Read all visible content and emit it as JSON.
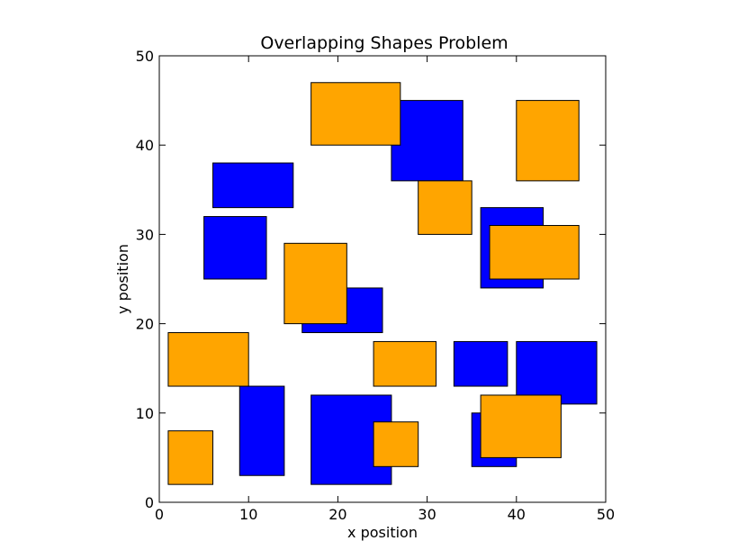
{
  "chart_data": {
    "type": "rectangles",
    "title": "Overlapping Shapes Problem",
    "xlabel": "x position",
    "ylabel": "y position",
    "xlim": [
      0,
      50
    ],
    "ylim": [
      0,
      50
    ],
    "xticks": [
      0,
      10,
      20,
      30,
      40,
      50
    ],
    "yticks": [
      0,
      10,
      20,
      30,
      40,
      50
    ],
    "grid": false,
    "colors": {
      "blue": "#0000ff",
      "orange": "#ffa500",
      "edge": "#000000"
    },
    "series": [
      {
        "name": "blue",
        "color": "#0000ff",
        "rects": [
          {
            "x": 26,
            "y": 36,
            "w": 8,
            "h": 9
          },
          {
            "x": 6,
            "y": 33,
            "w": 9,
            "h": 5
          },
          {
            "x": 5,
            "y": 25,
            "w": 7,
            "h": 7
          },
          {
            "x": 36,
            "y": 24,
            "w": 7,
            "h": 9
          },
          {
            "x": 16,
            "y": 19,
            "w": 9,
            "h": 5
          },
          {
            "x": 33,
            "y": 13,
            "w": 6,
            "h": 5
          },
          {
            "x": 40,
            "y": 11,
            "w": 9,
            "h": 7
          },
          {
            "x": 9,
            "y": 3,
            "w": 5,
            "h": 10
          },
          {
            "x": 17,
            "y": 2,
            "w": 9,
            "h": 10
          },
          {
            "x": 35,
            "y": 4,
            "w": 5,
            "h": 6
          }
        ]
      },
      {
        "name": "orange",
        "color": "#ffa500",
        "rects": [
          {
            "x": 17,
            "y": 40,
            "w": 10,
            "h": 7
          },
          {
            "x": 40,
            "y": 36,
            "w": 7,
            "h": 9
          },
          {
            "x": 29,
            "y": 30,
            "w": 6,
            "h": 6
          },
          {
            "x": 37,
            "y": 25,
            "w": 10,
            "h": 6
          },
          {
            "x": 14,
            "y": 20,
            "w": 7,
            "h": 9
          },
          {
            "x": 1,
            "y": 13,
            "w": 9,
            "h": 6
          },
          {
            "x": 24,
            "y": 13,
            "w": 7,
            "h": 5
          },
          {
            "x": 36,
            "y": 5,
            "w": 9,
            "h": 7
          },
          {
            "x": 1,
            "y": 2,
            "w": 5,
            "h": 6
          },
          {
            "x": 24,
            "y": 4,
            "w": 5,
            "h": 5
          }
        ]
      }
    ]
  }
}
